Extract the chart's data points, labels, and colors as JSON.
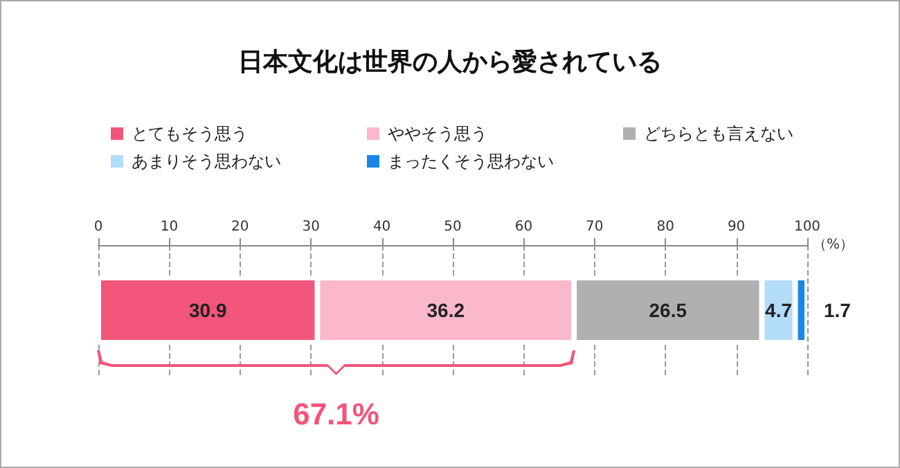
{
  "chart_data": {
    "type": "bar",
    "title": "日本文化は世界の人から愛されている",
    "orientation": "horizontal",
    "stacked": true,
    "categories": [
      null
    ],
    "series": [
      {
        "name": "とてもそう思う",
        "color": "#f2557a",
        "values": [
          30.9
        ]
      },
      {
        "name": "ややそう思う",
        "color": "#fbb8ca",
        "values": [
          36.2
        ]
      },
      {
        "name": "どちらとも言えない",
        "color": "#b0b0b0",
        "values": [
          26.5
        ]
      },
      {
        "name": "あまりそう思わない",
        "color": "#b3dcf8",
        "values": [
          4.7
        ]
      },
      {
        "name": "まったくそう思わない",
        "color": "#1a86e8",
        "values": [
          1.7
        ]
      }
    ],
    "xlim": [
      0,
      100
    ],
    "xticks": [
      0,
      10,
      20,
      30,
      40,
      50,
      60,
      70,
      80,
      90,
      100
    ],
    "xlabel": "（%）",
    "grid": "x",
    "legend": "top",
    "data_labels": true,
    "annotations": [
      "67.1%"
    ]
  }
}
